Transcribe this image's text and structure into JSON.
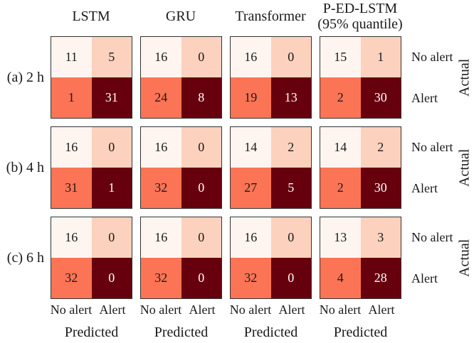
{
  "chart_data": {
    "type": "heatmap",
    "subtype": "confusion_matrix_grid",
    "colormap": "Reds",
    "title": "",
    "xlabel": "Predicted",
    "ylabel": "Actual",
    "x_tick_labels": [
      "No alert",
      "Alert"
    ],
    "y_tick_labels": [
      "No alert",
      "Alert"
    ],
    "col_headers": [
      {
        "line1": "LSTM",
        "line2": ""
      },
      {
        "line1": "GRU",
        "line2": ""
      },
      {
        "line1": "Transformer",
        "line2": ""
      },
      {
        "line1": "P-ED-LSTM",
        "line2": "(95% quantile)"
      }
    ],
    "row_labels": [
      "(a) 2 h",
      "(b) 4 h",
      "(c) 6 h"
    ],
    "cell_colors": {
      "top_left": "#fff5f0",
      "top_right": "#fcd1bd",
      "bottom_left": "#fb7455",
      "bottom_right": "#67000d"
    },
    "matrices": [
      {
        "row": "(a) 2 h",
        "model": "LSTM",
        "values": [
          [
            11,
            5
          ],
          [
            1,
            31
          ]
        ]
      },
      {
        "row": "(a) 2 h",
        "model": "GRU",
        "values": [
          [
            16,
            0
          ],
          [
            24,
            8
          ]
        ]
      },
      {
        "row": "(a) 2 h",
        "model": "Transformer",
        "values": [
          [
            16,
            0
          ],
          [
            19,
            13
          ]
        ]
      },
      {
        "row": "(a) 2 h",
        "model": "P-ED-LSTM (95% quantile)",
        "values": [
          [
            15,
            1
          ],
          [
            2,
            30
          ]
        ]
      },
      {
        "row": "(b) 4 h",
        "model": "LSTM",
        "values": [
          [
            16,
            0
          ],
          [
            31,
            1
          ]
        ]
      },
      {
        "row": "(b) 4 h",
        "model": "GRU",
        "values": [
          [
            16,
            0
          ],
          [
            32,
            0
          ]
        ]
      },
      {
        "row": "(b) 4 h",
        "model": "Transformer",
        "values": [
          [
            14,
            2
          ],
          [
            27,
            5
          ]
        ]
      },
      {
        "row": "(b) 4 h",
        "model": "P-ED-LSTM (95% quantile)",
        "values": [
          [
            14,
            2
          ],
          [
            2,
            30
          ]
        ]
      },
      {
        "row": "(c) 6 h",
        "model": "LSTM",
        "values": [
          [
            16,
            0
          ],
          [
            32,
            0
          ]
        ]
      },
      {
        "row": "(c) 6 h",
        "model": "GRU",
        "values": [
          [
            16,
            0
          ],
          [
            32,
            0
          ]
        ]
      },
      {
        "row": "(c) 6 h",
        "model": "Transformer",
        "values": [
          [
            16,
            0
          ],
          [
            32,
            0
          ]
        ]
      },
      {
        "row": "(c) 6 h",
        "model": "P-ED-LSTM (95% quantile)",
        "values": [
          [
            13,
            3
          ],
          [
            4,
            28
          ]
        ]
      }
    ]
  }
}
